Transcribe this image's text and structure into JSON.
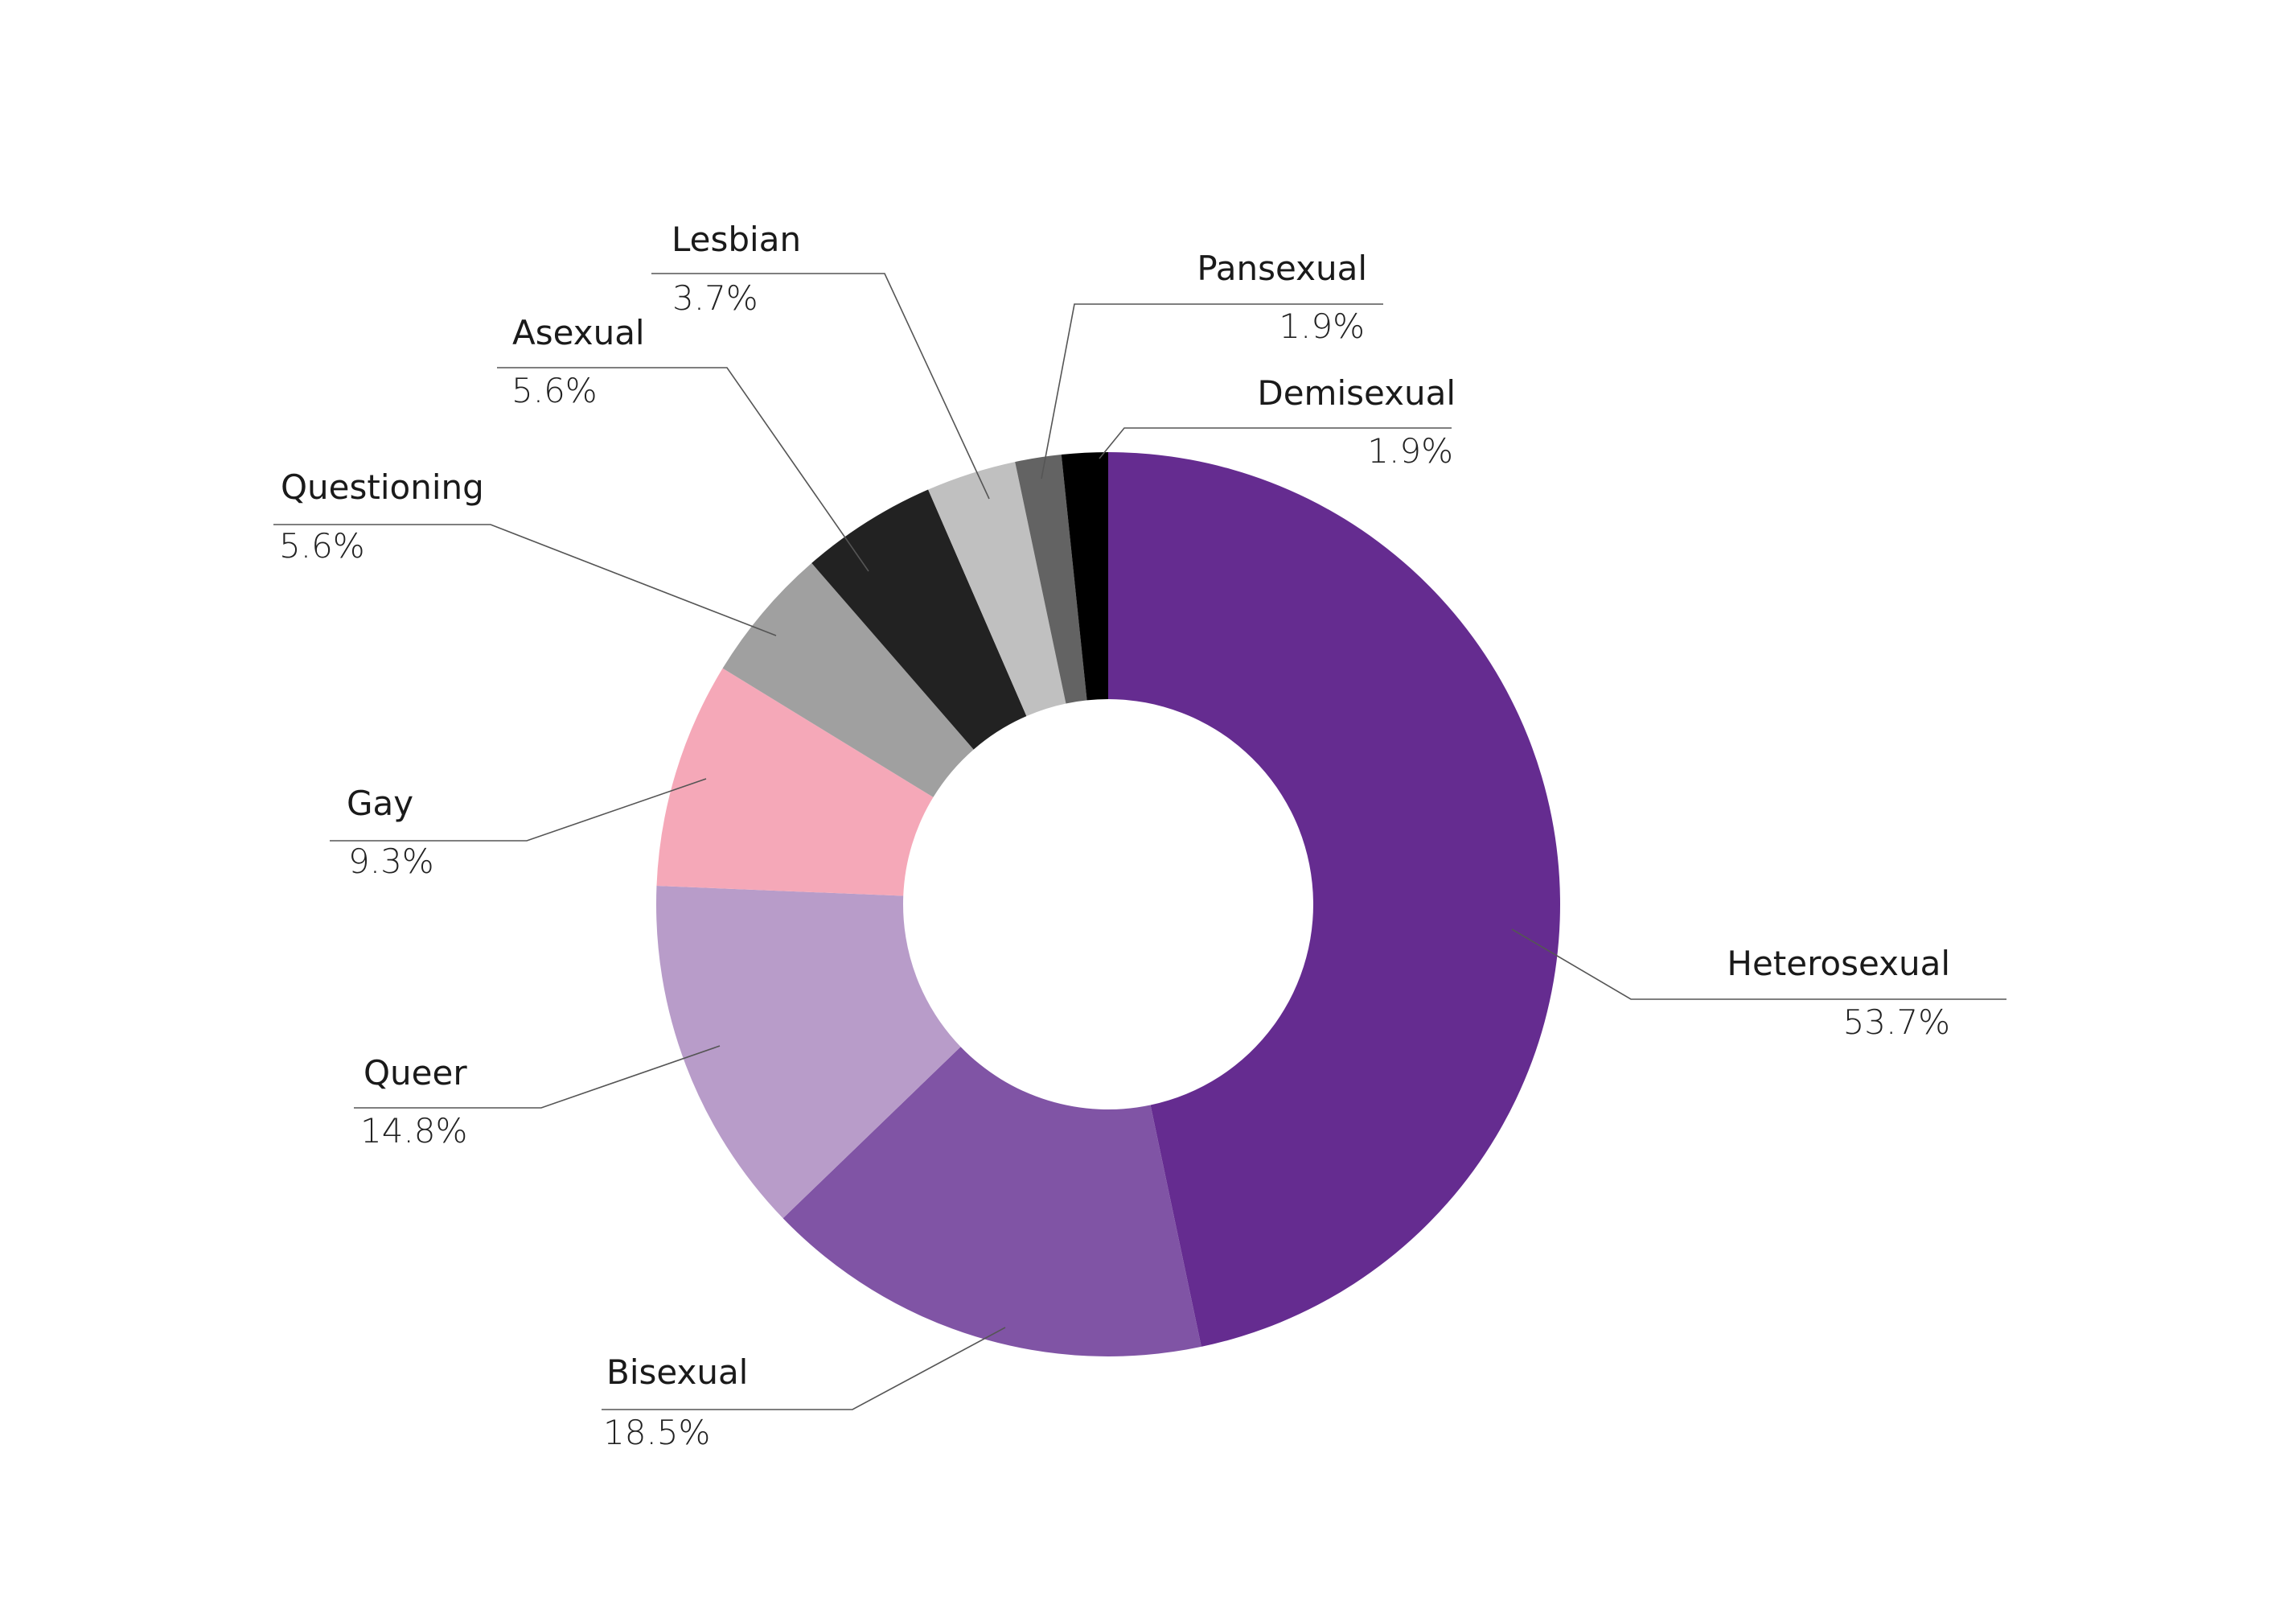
{
  "chart_data": {
    "type": "pie",
    "title": "",
    "donut": true,
    "legend": "none",
    "slices": [
      {
        "label": "Heterosexual",
        "value": 53.7,
        "value_label": "53.7%",
        "color": "#652c90"
      },
      {
        "label": "Bisexual",
        "value": 18.5,
        "value_label": "18.5%",
        "color": "#8054a5"
      },
      {
        "label": "Queer",
        "value": 14.8,
        "value_label": "14.8%",
        "color": "#b89cc9"
      },
      {
        "label": "Gay",
        "value": 9.3,
        "value_label": "9.3%",
        "color": "#f5a8b8"
      },
      {
        "label": "Questioning",
        "value": 5.6,
        "value_label": "5.6%",
        "color": "#a0a0a0"
      },
      {
        "label": "Asexual",
        "value": 5.6,
        "value_label": "5.6%",
        "color": "#222222"
      },
      {
        "label": "Lesbian",
        "value": 3.7,
        "value_label": "3.7%",
        "color": "#c0c0c0"
      },
      {
        "label": "Pansexual",
        "value": 1.9,
        "value_label": "1.9%",
        "color": "#636363"
      },
      {
        "label": "Demisexual",
        "value": 1.9,
        "value_label": "1.9%",
        "color": "#000000"
      }
    ]
  }
}
